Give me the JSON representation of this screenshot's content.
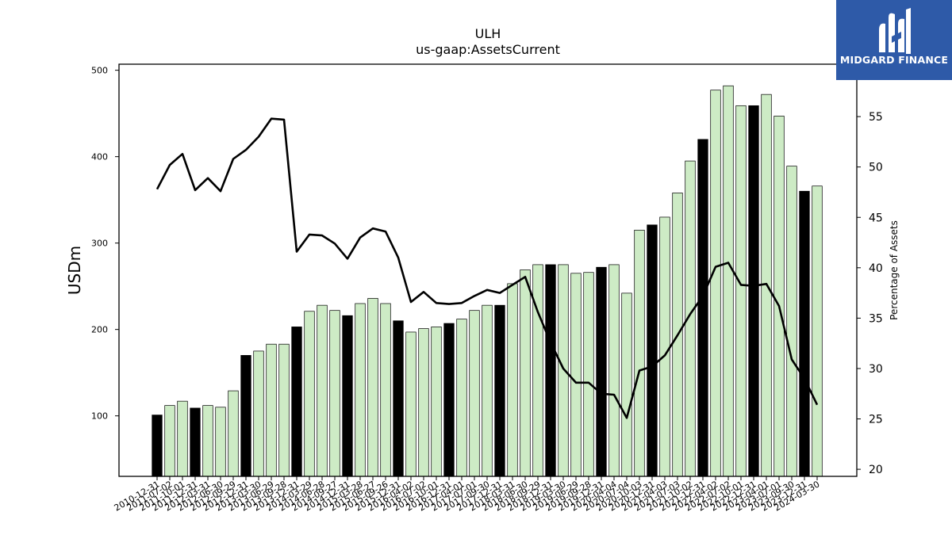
{
  "chart_data": {
    "type": "bar",
    "title": "ULH",
    "subtitle": "us-gaap:AssetsCurrent",
    "ylabel": "USDm",
    "y2label": "Percentage of Assets",
    "ylim": [
      30,
      507
    ],
    "y2lim": [
      19.3,
      60.2
    ],
    "yticks": [
      100,
      200,
      300,
      400,
      500
    ],
    "y2ticks": [
      20,
      25,
      30,
      35,
      40,
      45,
      50,
      55
    ],
    "categories": [
      "2010-12-31",
      "2011-07-02",
      "2011-10-01",
      "2011-12-31",
      "2012-03-31",
      "2012-06-30",
      "2012-09-29",
      "2012-12-31",
      "2013-03-30",
      "2013-06-29",
      "2013-09-28",
      "2013-12-31",
      "2014-03-29",
      "2014-06-28",
      "2014-09-27",
      "2014-12-31",
      "2015-03-28",
      "2015-06-27",
      "2015-09-26",
      "2015-12-31",
      "2016-04-02",
      "2016-07-02",
      "2016-10-01",
      "2016-12-31",
      "2017-04-01",
      "2017-07-01",
      "2017-09-30",
      "2017-12-31",
      "2018-03-31",
      "2018-06-30",
      "2018-09-29",
      "2018-12-31",
      "2019-03-30",
      "2019-06-29",
      "2019-09-28",
      "2019-12-31",
      "2020-04-04",
      "2020-07-04",
      "2020-10-03",
      "2020-12-31",
      "2021-04-03",
      "2021-07-03",
      "2021-10-02",
      "2021-12-31",
      "2022-04-02",
      "2022-07-02",
      "2022-10-01",
      "2022-12-31",
      "2023-04-01",
      "2023-07-01",
      "2023-09-30",
      "2023-12-31",
      "2024-03-30"
    ],
    "tick_labels": [
      "2010-12-31",
      "2011-07-02",
      "2011-10-01",
      "2011-12-31",
      "2012-03-31",
      "2012-06-30",
      "2012-09-29",
      "2012-12-31",
      "2013-03-30",
      "2013-06-29",
      "2013-09-28",
      "2013-12-31",
      "2014-03-29",
      "2014-06-28",
      "2014-09-27",
      "2014-12-31",
      "2015-03-28",
      "2015-06-27",
      "2015-09-26",
      "2015-12-31",
      "2016-04-02",
      "2016-07-02",
      "2016-10-01",
      "2016-12-31",
      "2017-04-01",
      "2017-07-01",
      "2017-09-30",
      "2017-12-31",
      "2018-03-31",
      "2018-06-30",
      "2018-09-29",
      "2018-12-31",
      "2019-03-30",
      "2019-06-29",
      "2019-09-28",
      "2019-12-31",
      "2020-04-04",
      "2020-07-04",
      "2020-10-03",
      "2020-12-31",
      "2021-04-03",
      "2021-07-03",
      "2021-10-02",
      "2021-12-31",
      "2022-04-02",
      "2022-07-02",
      "2022-10-01",
      "2022-12-31",
      "2023-04-01",
      "2023-07-01",
      "2023-09-30",
      "2023-12-31",
      "2024-03-30"
    ],
    "series": [
      {
        "type": "bar",
        "values": [
          101,
          112,
          117,
          109,
          112,
          110,
          129,
          170,
          175,
          183,
          183,
          203,
          221,
          228,
          222,
          216,
          230,
          236,
          230,
          210,
          197,
          201,
          203,
          207,
          212,
          222,
          228,
          228,
          253,
          269,
          275,
          275,
          275,
          265,
          266,
          272,
          275,
          242,
          315,
          321,
          330,
          358,
          395,
          420,
          477,
          482,
          459,
          459,
          472,
          447,
          389,
          360,
          366
        ],
        "highlight": [
          true,
          false,
          false,
          true,
          false,
          false,
          false,
          true,
          false,
          false,
          false,
          true,
          false,
          false,
          false,
          true,
          false,
          false,
          false,
          true,
          false,
          false,
          false,
          true,
          false,
          false,
          false,
          true,
          false,
          false,
          false,
          true,
          false,
          false,
          false,
          true,
          false,
          false,
          false,
          true,
          false,
          false,
          false,
          true,
          false,
          false,
          false,
          true,
          false,
          false,
          false,
          true,
          false
        ],
        "color": "#cdebc5",
        "highlight_color": "#000000"
      },
      {
        "type": "line",
        "axis": "right",
        "values": [
          47.8,
          50.2,
          51.3,
          47.7,
          48.9,
          47.6,
          50.8,
          51.7,
          53.0,
          54.8,
          54.7,
          41.6,
          43.3,
          43.2,
          42.4,
          40.9,
          43.0,
          43.9,
          43.6,
          41.0,
          36.6,
          37.6,
          36.5,
          36.4,
          36.5,
          37.2,
          37.8,
          37.5,
          38.3,
          39.1,
          35.6,
          32.6,
          30.0,
          28.6,
          28.6,
          27.5,
          27.4,
          25.1,
          29.8,
          30.2,
          31.3,
          33.3,
          35.4,
          37.2,
          40.1,
          40.5,
          38.3,
          38.2,
          38.4,
          36.2,
          30.9,
          29.0,
          26.4
        ],
        "color": "#000000"
      }
    ],
    "grid": false
  },
  "logo": {
    "text": "MIDGARD FINANCE",
    "icon": "midgard-m-logo-icon",
    "background": "#2e5aa8"
  }
}
